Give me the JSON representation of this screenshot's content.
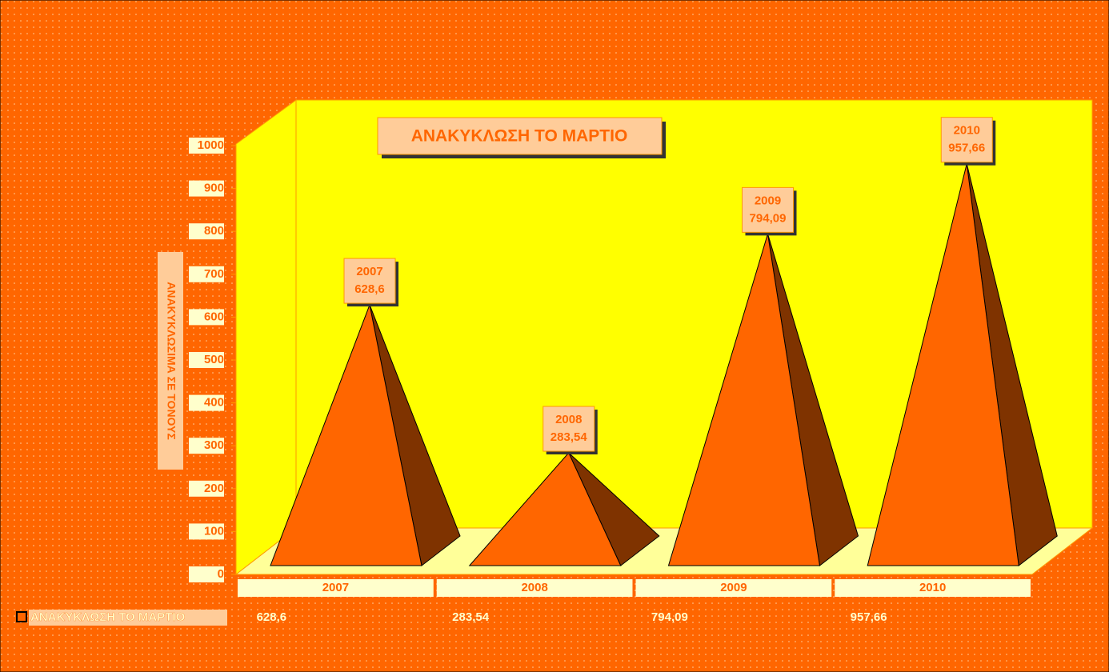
{
  "chart_data": {
    "type": "pyramid3d",
    "title": "ΑΝΑΚΥΚΛΩΣΗ ΤΟ ΜΑΡΤΙΟ",
    "y_label": "ΑΝΑΚΥΚΛΩΣΙΜΑ ΣΕ ΤΟΝΟΥΣ",
    "categories": [
      "2007",
      "2008",
      "2009",
      "2010"
    ],
    "series": [
      {
        "name": "ΑΝΑΚΥΚΛΩΣΗ ΤΟ ΜΑΡΤΙΟ",
        "color": "#ff6600",
        "values": [
          628.6,
          283.54,
          794.09,
          957.66
        ],
        "value_labels": [
          "628,6",
          "283,54",
          "794,09",
          "957,66"
        ]
      }
    ],
    "ylim": [
      0,
      1000
    ],
    "yticks": [
      0,
      100,
      200,
      300,
      400,
      500,
      600,
      700,
      800,
      900,
      1000
    ],
    "data_table": true
  }
}
